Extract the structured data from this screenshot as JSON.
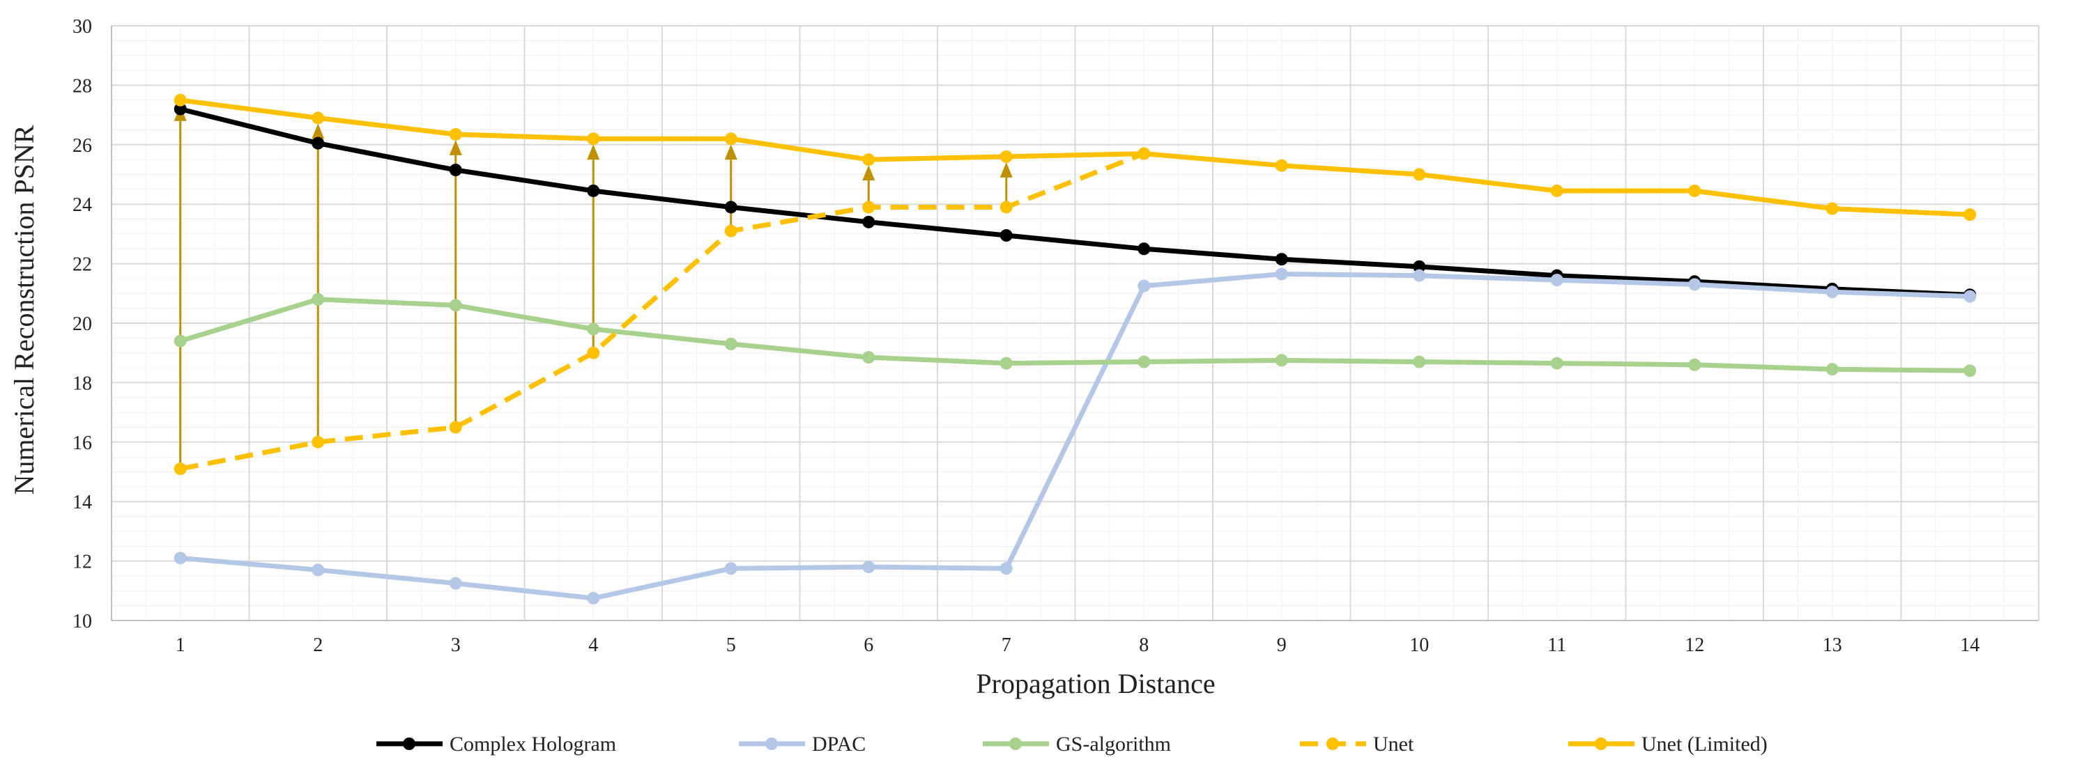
{
  "chart_data": {
    "type": "line",
    "title": "",
    "xlabel": "Propagation Distance",
    "ylabel": "Numerical Reconstruction PSNR",
    "x": [
      1,
      2,
      3,
      4,
      5,
      6,
      7,
      8,
      9,
      10,
      11,
      12,
      13,
      14
    ],
    "ylim": [
      10,
      30
    ],
    "yticks": [
      10,
      12,
      14,
      16,
      18,
      20,
      22,
      24,
      26,
      28,
      30
    ],
    "grid": true,
    "legend_position": "bottom",
    "series": [
      {
        "name": "Complex Hologram",
        "color": "#000000",
        "dashed": false,
        "values": [
          27.2,
          26.05,
          25.15,
          24.45,
          23.9,
          23.4,
          22.95,
          22.5,
          22.15,
          21.9,
          21.6,
          21.4,
          21.15,
          20.95
        ]
      },
      {
        "name": "DPAC",
        "color": "#b4c7e7",
        "dashed": false,
        "values": [
          12.1,
          11.7,
          11.25,
          10.75,
          11.75,
          11.8,
          11.75,
          21.25,
          21.65,
          21.6,
          21.45,
          21.3,
          21.05,
          20.9
        ]
      },
      {
        "name": "GS-algorithm",
        "color": "#a9d18e",
        "dashed": false,
        "values": [
          19.4,
          20.8,
          20.6,
          19.8,
          19.3,
          18.85,
          18.65,
          18.7,
          18.75,
          18.7,
          18.65,
          18.6,
          18.45,
          18.4
        ]
      },
      {
        "name": "Unet",
        "color": "#ffc000",
        "dashed": true,
        "values": [
          15.1,
          16.0,
          16.5,
          19.0,
          23.1,
          23.9,
          23.9,
          25.7,
          null,
          null,
          null,
          null,
          null,
          null
        ]
      },
      {
        "name": "Unet (Limited)",
        "color": "#ffc000",
        "dashed": false,
        "values": [
          27.5,
          26.9,
          26.35,
          26.2,
          26.2,
          25.5,
          25.6,
          25.7,
          25.3,
          25.0,
          24.45,
          24.45,
          23.85,
          23.65
        ]
      }
    ],
    "arrows": {
      "color": "#bf9000",
      "from_series": "Unet",
      "to_series": "Unet (Limited)",
      "x": [
        1,
        2,
        3,
        4,
        5,
        6,
        7
      ]
    }
  }
}
